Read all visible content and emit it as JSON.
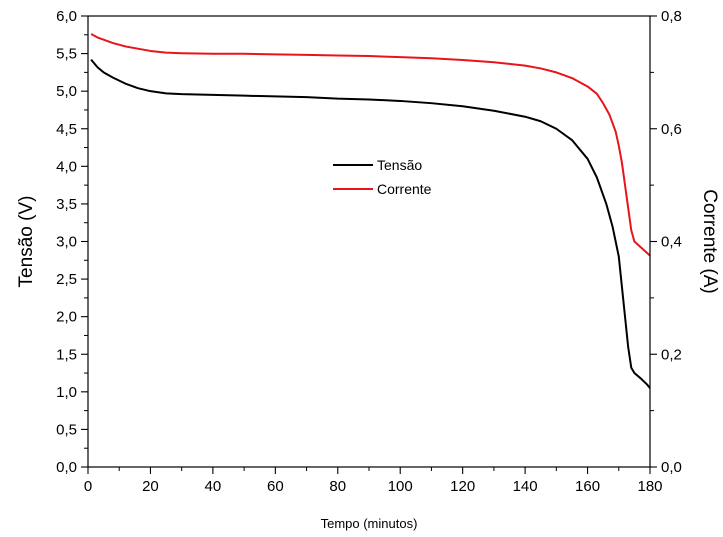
{
  "chart_data": {
    "type": "line",
    "title": "",
    "xlabel": "Tempo (minutos)",
    "ylabel_left": "Tensão (V)",
    "ylabel_right": "Corrente (A)",
    "xlim": [
      0,
      180
    ],
    "ylim_left": [
      0,
      6
    ],
    "ylim_right": [
      0,
      0.8
    ],
    "x_ticks": [
      0,
      20,
      40,
      60,
      80,
      100,
      120,
      140,
      160,
      180
    ],
    "y_left_ticks": [
      "0,0",
      "0,5",
      "1,0",
      "1,5",
      "2,0",
      "2,5",
      "3,0",
      "3,5",
      "4,0",
      "4,5",
      "5,0",
      "5,5",
      "6,0"
    ],
    "y_right_ticks": [
      "0,0",
      "0,2",
      "0,4",
      "0,6",
      "0,8"
    ],
    "grid": false,
    "legend_position": "center",
    "series": [
      {
        "name": "Tensão",
        "axis": "left",
        "color": "#000000",
        "x": [
          1,
          3,
          5,
          8,
          12,
          16,
          20,
          25,
          30,
          40,
          50,
          60,
          70,
          80,
          90,
          100,
          110,
          120,
          130,
          140,
          145,
          150,
          155,
          160,
          163,
          166,
          168,
          170,
          171,
          172,
          173,
          174,
          175,
          177,
          179,
          180
        ],
        "y": [
          5.42,
          5.32,
          5.25,
          5.18,
          5.1,
          5.04,
          5.0,
          4.97,
          4.96,
          4.95,
          4.94,
          4.93,
          4.92,
          4.9,
          4.89,
          4.87,
          4.84,
          4.8,
          4.74,
          4.66,
          4.6,
          4.5,
          4.35,
          4.1,
          3.85,
          3.5,
          3.2,
          2.8,
          2.4,
          2.0,
          1.6,
          1.32,
          1.25,
          1.18,
          1.1,
          1.05
        ]
      },
      {
        "name": "Corrente",
        "axis": "right",
        "color": "#e8141c",
        "x": [
          1,
          3,
          5,
          8,
          12,
          16,
          20,
          25,
          30,
          40,
          50,
          60,
          70,
          80,
          90,
          100,
          110,
          120,
          130,
          140,
          145,
          150,
          155,
          160,
          163,
          165,
          167,
          169,
          170,
          171,
          172,
          173,
          174,
          175,
          177,
          180
        ],
        "y": [
          0.768,
          0.762,
          0.758,
          0.752,
          0.746,
          0.742,
          0.738,
          0.735,
          0.734,
          0.733,
          0.733,
          0.732,
          0.731,
          0.73,
          0.729,
          0.727,
          0.725,
          0.722,
          0.718,
          0.712,
          0.707,
          0.7,
          0.69,
          0.675,
          0.662,
          0.645,
          0.625,
          0.595,
          0.57,
          0.54,
          0.5,
          0.46,
          0.42,
          0.4,
          0.39,
          0.375
        ]
      }
    ]
  }
}
